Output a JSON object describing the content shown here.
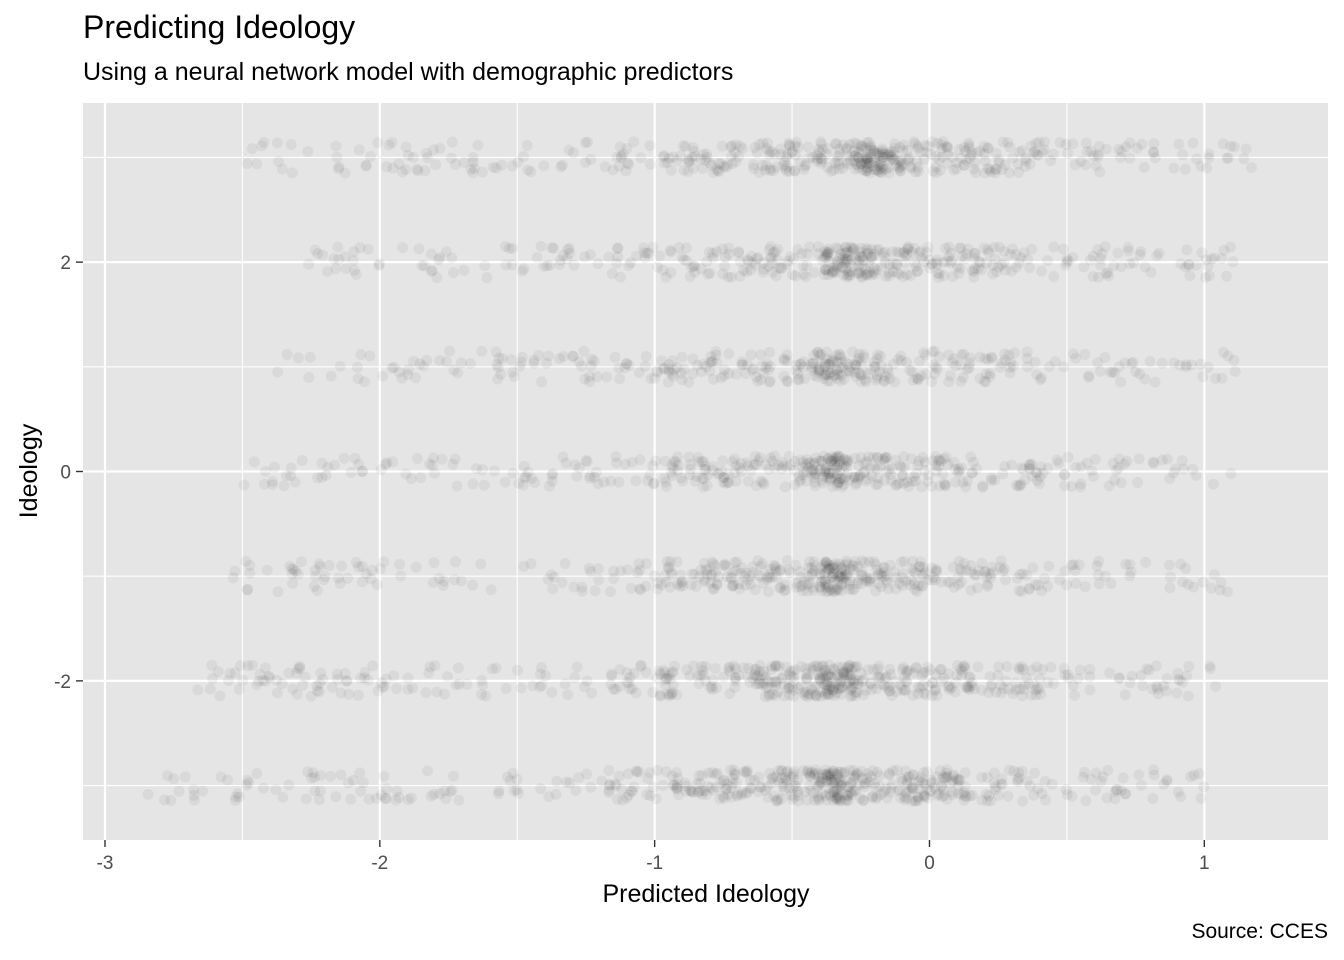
{
  "title": "Predicting Ideology",
  "subtitle": "Using a neural network model with demographic predictors",
  "caption": "Source: CCES",
  "chart_data": {
    "type": "scatter",
    "xlabel": "Predicted Ideology",
    "ylabel": "Ideology",
    "xlim": [
      -3.08,
      1.45
    ],
    "ylim": [
      -3.52,
      3.52
    ],
    "x_ticks": [
      -3,
      -2,
      -1,
      0,
      1
    ],
    "x_tick_labels": [
      "-3",
      "-2",
      "-1",
      "0",
      "1"
    ],
    "y_ticks": [
      -2,
      0,
      2
    ],
    "y_tick_labels": [
      "-2",
      "0",
      "2"
    ],
    "y_levels": [
      -3,
      -2,
      -1,
      0,
      1,
      2,
      3
    ],
    "jitter": 0.15,
    "point_color": "#000000",
    "point_alpha": 0.05,
    "panel_color": "#e5e5e5",
    "grid": true,
    "grid_color": "#ffffff",
    "legend": "none",
    "density_centers": [
      {
        "y": -3,
        "x_range": [
          -2.85,
          1.05
        ],
        "peak_x": -0.35,
        "count": 520
      },
      {
        "y": -2,
        "x_range": [
          -2.7,
          1.05
        ],
        "peak_x": -0.35,
        "count": 520
      },
      {
        "y": -1,
        "x_range": [
          -2.55,
          1.1
        ],
        "peak_x": -0.35,
        "count": 440
      },
      {
        "y": 0,
        "x_range": [
          -2.5,
          1.1
        ],
        "peak_x": -0.35,
        "count": 430
      },
      {
        "y": 1,
        "x_range": [
          -2.4,
          1.15
        ],
        "peak_x": -0.35,
        "count": 360
      },
      {
        "y": 2,
        "x_range": [
          -2.3,
          1.15
        ],
        "peak_x": -0.3,
        "count": 420
      },
      {
        "y": 3,
        "x_range": [
          -2.5,
          1.2
        ],
        "peak_x": -0.2,
        "count": 470
      }
    ]
  }
}
